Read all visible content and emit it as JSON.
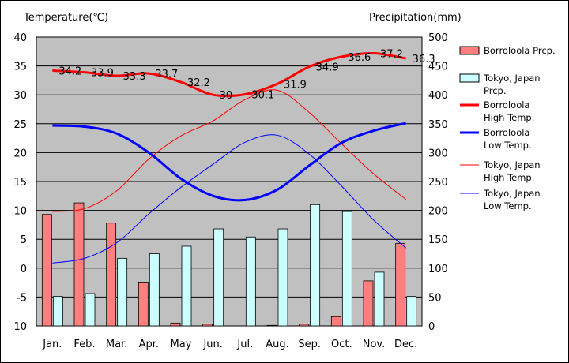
{
  "chart_data": {
    "type": "bar",
    "title": "",
    "left_axis_label": "Temperature(℃)",
    "right_axis_label": "Precipitation(mm)",
    "categories": [
      "Jan.",
      "Feb.",
      "Mar.",
      "Apr.",
      "May",
      "Jun.",
      "Jul.",
      "Aug.",
      "Sep.",
      "Oct.",
      "Nov.",
      "Dec."
    ],
    "left_axis": {
      "min": -10,
      "max": 40,
      "step": 5,
      "ticks": [
        "40",
        "35",
        "30",
        "25",
        "20",
        "15",
        "10",
        "5",
        "0",
        "-5",
        "-10"
      ]
    },
    "right_axis": {
      "min": 0,
      "max": 500,
      "step": 50,
      "ticks": [
        "500",
        "450",
        "400",
        "350",
        "300",
        "250",
        "200",
        "150",
        "100",
        "50",
        "0"
      ]
    },
    "grid": true,
    "legend_position": "right",
    "bar_series": [
      {
        "name": "Borroloola Prcp.",
        "color": "#ff7f7f",
        "values": [
          193,
          213,
          178,
          76,
          5,
          3,
          0,
          1,
          3,
          16,
          78,
          143
        ]
      },
      {
        "name": "Tokyo, Japan Prcp.",
        "color": "#ccffff",
        "values": [
          51,
          56,
          117,
          125,
          138,
          168,
          154,
          168,
          210,
          198,
          93,
          51
        ]
      }
    ],
    "line_series": [
      {
        "name": "Borroloola High Temp.",
        "color": "#ff0000",
        "width": "thick",
        "values": [
          34.2,
          33.9,
          33.3,
          33.7,
          32.2,
          30.0,
          30.1,
          31.9,
          34.9,
          36.6,
          37.2,
          36.3
        ],
        "labels": [
          "34.2",
          "33.9",
          "33.3",
          "33.7",
          "32.2",
          "30",
          "30.1",
          "31.9",
          "34.9",
          "36.6",
          "37.2",
          "36.3"
        ]
      },
      {
        "name": "Borroloola Low Temp.",
        "color": "#0000ff",
        "width": "thick",
        "values": [
          24.7,
          24.5,
          23.3,
          20.0,
          15.5,
          12.5,
          11.8,
          13.6,
          17.8,
          21.7,
          23.8,
          25.1
        ]
      },
      {
        "name": "Tokyo, Japan High Temp.",
        "color": "#ff0000",
        "width": "thin",
        "values": [
          9.8,
          10.3,
          13.4,
          18.9,
          22.9,
          25.5,
          29.2,
          30.8,
          26.9,
          21.5,
          16.3,
          11.9
        ]
      },
      {
        "name": "Tokyo, Japan Low Temp.",
        "color": "#0000ff",
        "width": "thin",
        "values": [
          0.9,
          1.7,
          4.4,
          9.4,
          14.0,
          18.0,
          21.8,
          23.0,
          19.7,
          14.2,
          8.3,
          3.5
        ]
      }
    ],
    "legend": [
      {
        "kind": "box",
        "color": "#ff7f7f",
        "lines": [
          "Borroloola Prcp."
        ]
      },
      {
        "kind": "box",
        "color": "#ccffff",
        "lines": [
          "Tokyo, Japan",
          "Prcp."
        ]
      },
      {
        "kind": "line",
        "color": "#ff0000",
        "width": "thick",
        "lines": [
          "Borroloola",
          "High Temp."
        ]
      },
      {
        "kind": "line",
        "color": "#0000ff",
        "width": "thick",
        "lines": [
          "Borroloola",
          "Low Temp."
        ]
      },
      {
        "kind": "line",
        "color": "#ff0000",
        "width": "thin",
        "lines": [
          "Tokyo, Japan",
          "High Temp."
        ]
      },
      {
        "kind": "line",
        "color": "#0000ff",
        "width": "thin",
        "lines": [
          "Tokyo, Japan",
          "Low Temp."
        ]
      }
    ]
  }
}
